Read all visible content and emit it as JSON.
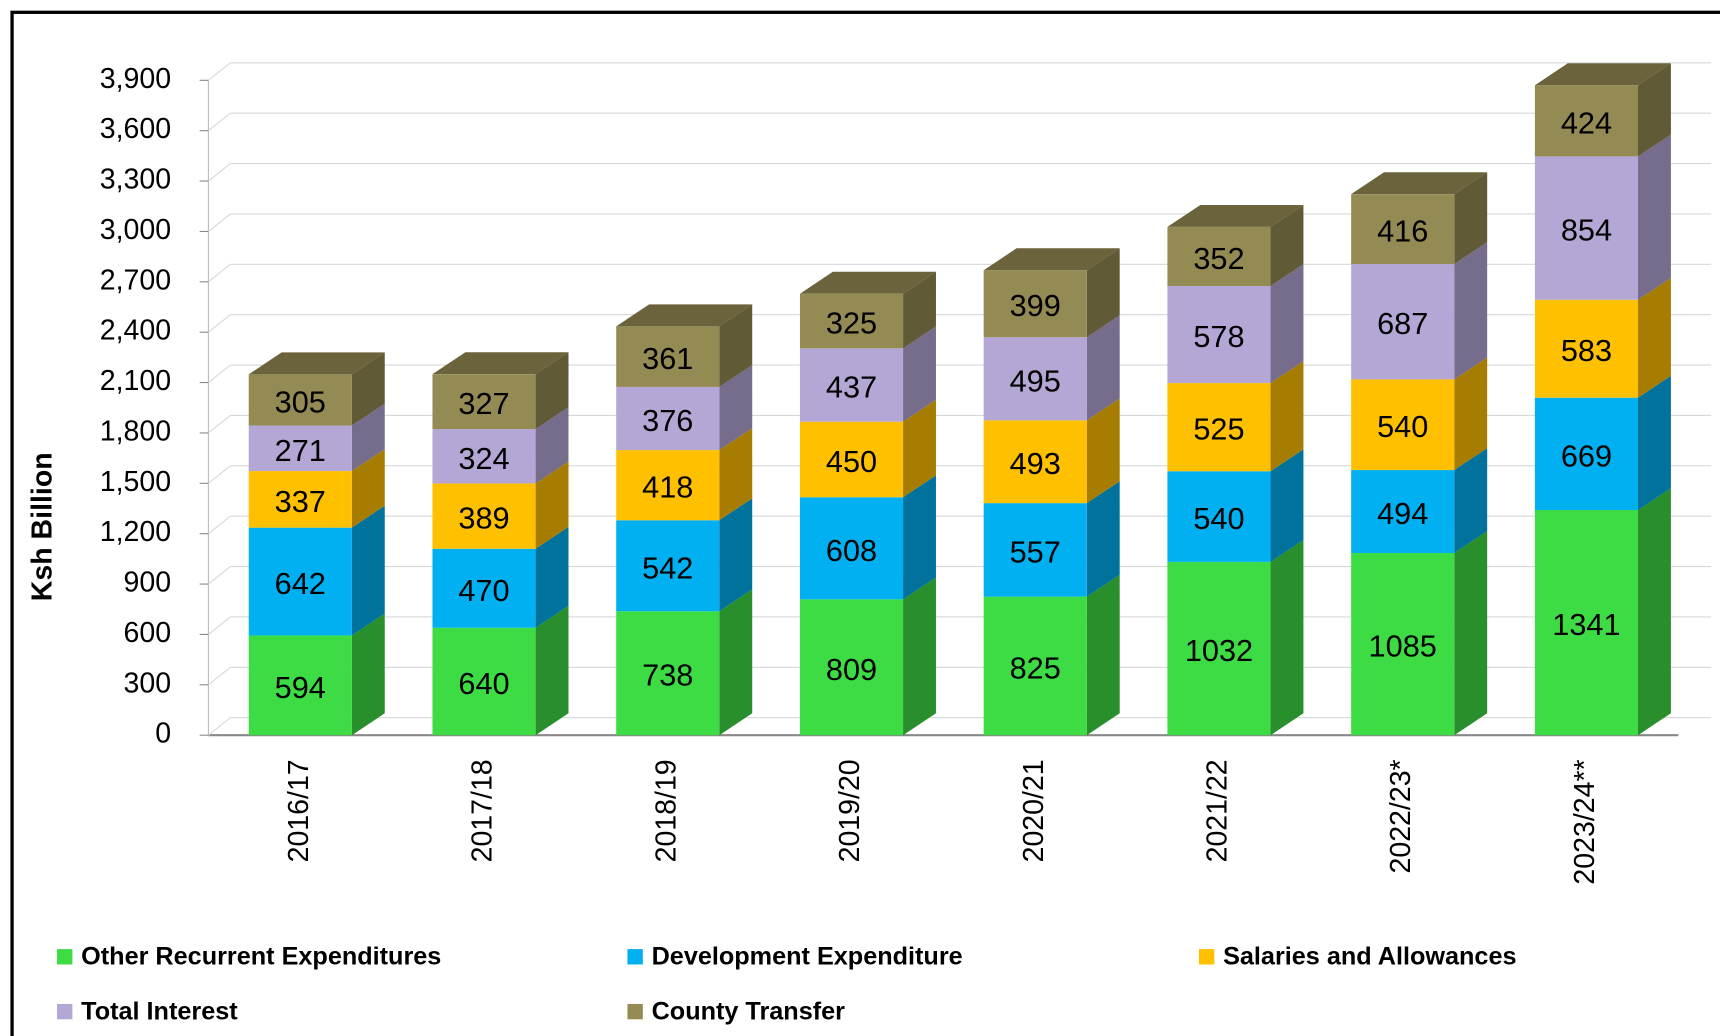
{
  "chart_data": {
    "type": "bar",
    "stacked": true,
    "y_label": "Ksh Billion",
    "categories": [
      "2016/17",
      "2017/18",
      "2018/19",
      "2019/20",
      "2020/21",
      "2021/22",
      "2022/23*",
      "2023/24**"
    ],
    "series": [
      {
        "name": "Other Recurrent Expenditures",
        "color": "#3ddc44",
        "values": [
          594,
          640,
          738,
          809,
          825,
          1032,
          1085,
          1341
        ]
      },
      {
        "name": "Development Expenditure",
        "color": "#00b0f0",
        "values": [
          642,
          470,
          542,
          608,
          557,
          540,
          494,
          669
        ]
      },
      {
        "name": "Salaries and Allowances",
        "color": "#ffc000",
        "values": [
          337,
          389,
          418,
          450,
          493,
          525,
          540,
          583
        ]
      },
      {
        "name": "Total Interest",
        "color": "#b4a7d6",
        "values": [
          271,
          324,
          376,
          437,
          495,
          578,
          687,
          854
        ]
      },
      {
        "name": "County Transfer",
        "color": "#948a54",
        "values": [
          305,
          327,
          361,
          325,
          399,
          352,
          416,
          424
        ]
      }
    ],
    "ylim": [
      0,
      3900
    ],
    "yticks": [
      0,
      300,
      600,
      900,
      {
        "value": 1200,
        "label": "1,200"
      },
      {
        "value": 1500,
        "label": "1,500"
      },
      {
        "value": 1800,
        "label": "1,800"
      },
      {
        "value": 2100,
        "label": "2,100"
      },
      {
        "value": 2400,
        "label": "2,400"
      },
      {
        "value": 2700,
        "label": "2,700"
      },
      {
        "value": 3000,
        "label": "3,000"
      },
      {
        "value": 3300,
        "label": "3,300"
      },
      {
        "value": 3600,
        "label": "3,600"
      },
      {
        "value": 3900,
        "label": "3,900"
      }
    ],
    "grid": true
  }
}
